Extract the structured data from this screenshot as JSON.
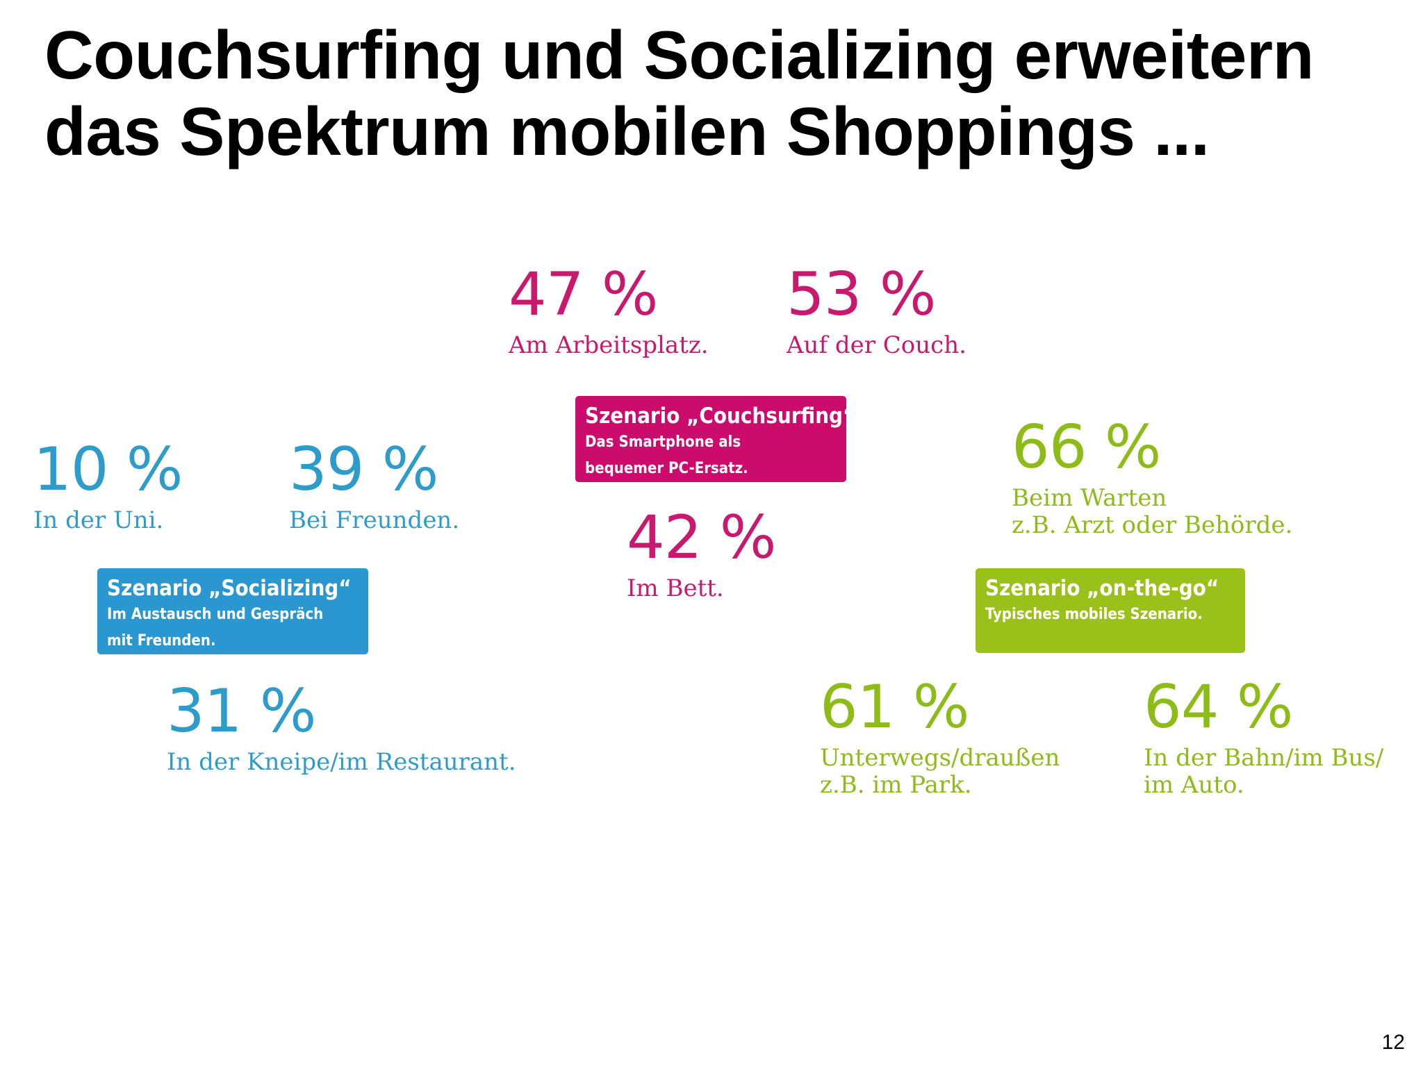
{
  "slide": {
    "title_line1": "Couchsurfing und Socializing erweitern",
    "title_line2": "das Spektrum mobilen Shoppings ...",
    "page_number": "12"
  },
  "colors": {
    "couchsurfing": "#c8196e",
    "socializing": "#2e9ccb",
    "on_the_go": "#8dbb17"
  },
  "couchsurfing": {
    "box_title": "Szenario „Couchsurfing“",
    "box_line1": "Das Smartphone als",
    "box_line2": "bequemer PC-Ersatz.",
    "stats": [
      {
        "value": "47 %",
        "label": "Am Arbeitsplatz."
      },
      {
        "value": "53 %",
        "label": "Auf der Couch."
      },
      {
        "value": "42 %",
        "label": "Im Bett."
      }
    ]
  },
  "socializing": {
    "box_title": "Szenario „Socializing“",
    "box_line1": "Im Austausch und Gespräch",
    "box_line2": "mit Freunden.",
    "stats": [
      {
        "value": "10 %",
        "label": "In der Uni."
      },
      {
        "value": "39 %",
        "label": "Bei Freunden."
      },
      {
        "value": "31 %",
        "label": "In der Kneipe/im Restaurant."
      }
    ]
  },
  "on_the_go": {
    "box_title": "Szenario „on-the-go“",
    "box_line1": "Typisches mobiles Szenario.",
    "stats": [
      {
        "value": "66 %",
        "label_line1": "Beim Warten",
        "label_line2": "z.B. Arzt oder Behörde."
      },
      {
        "value": "61 %",
        "label_line1": "Unterwegs/draußen",
        "label_line2": "z.B. im Park."
      },
      {
        "value": "64 %",
        "label_line1": "In der Bahn/im Bus/",
        "label_line2": "im Auto."
      }
    ]
  }
}
